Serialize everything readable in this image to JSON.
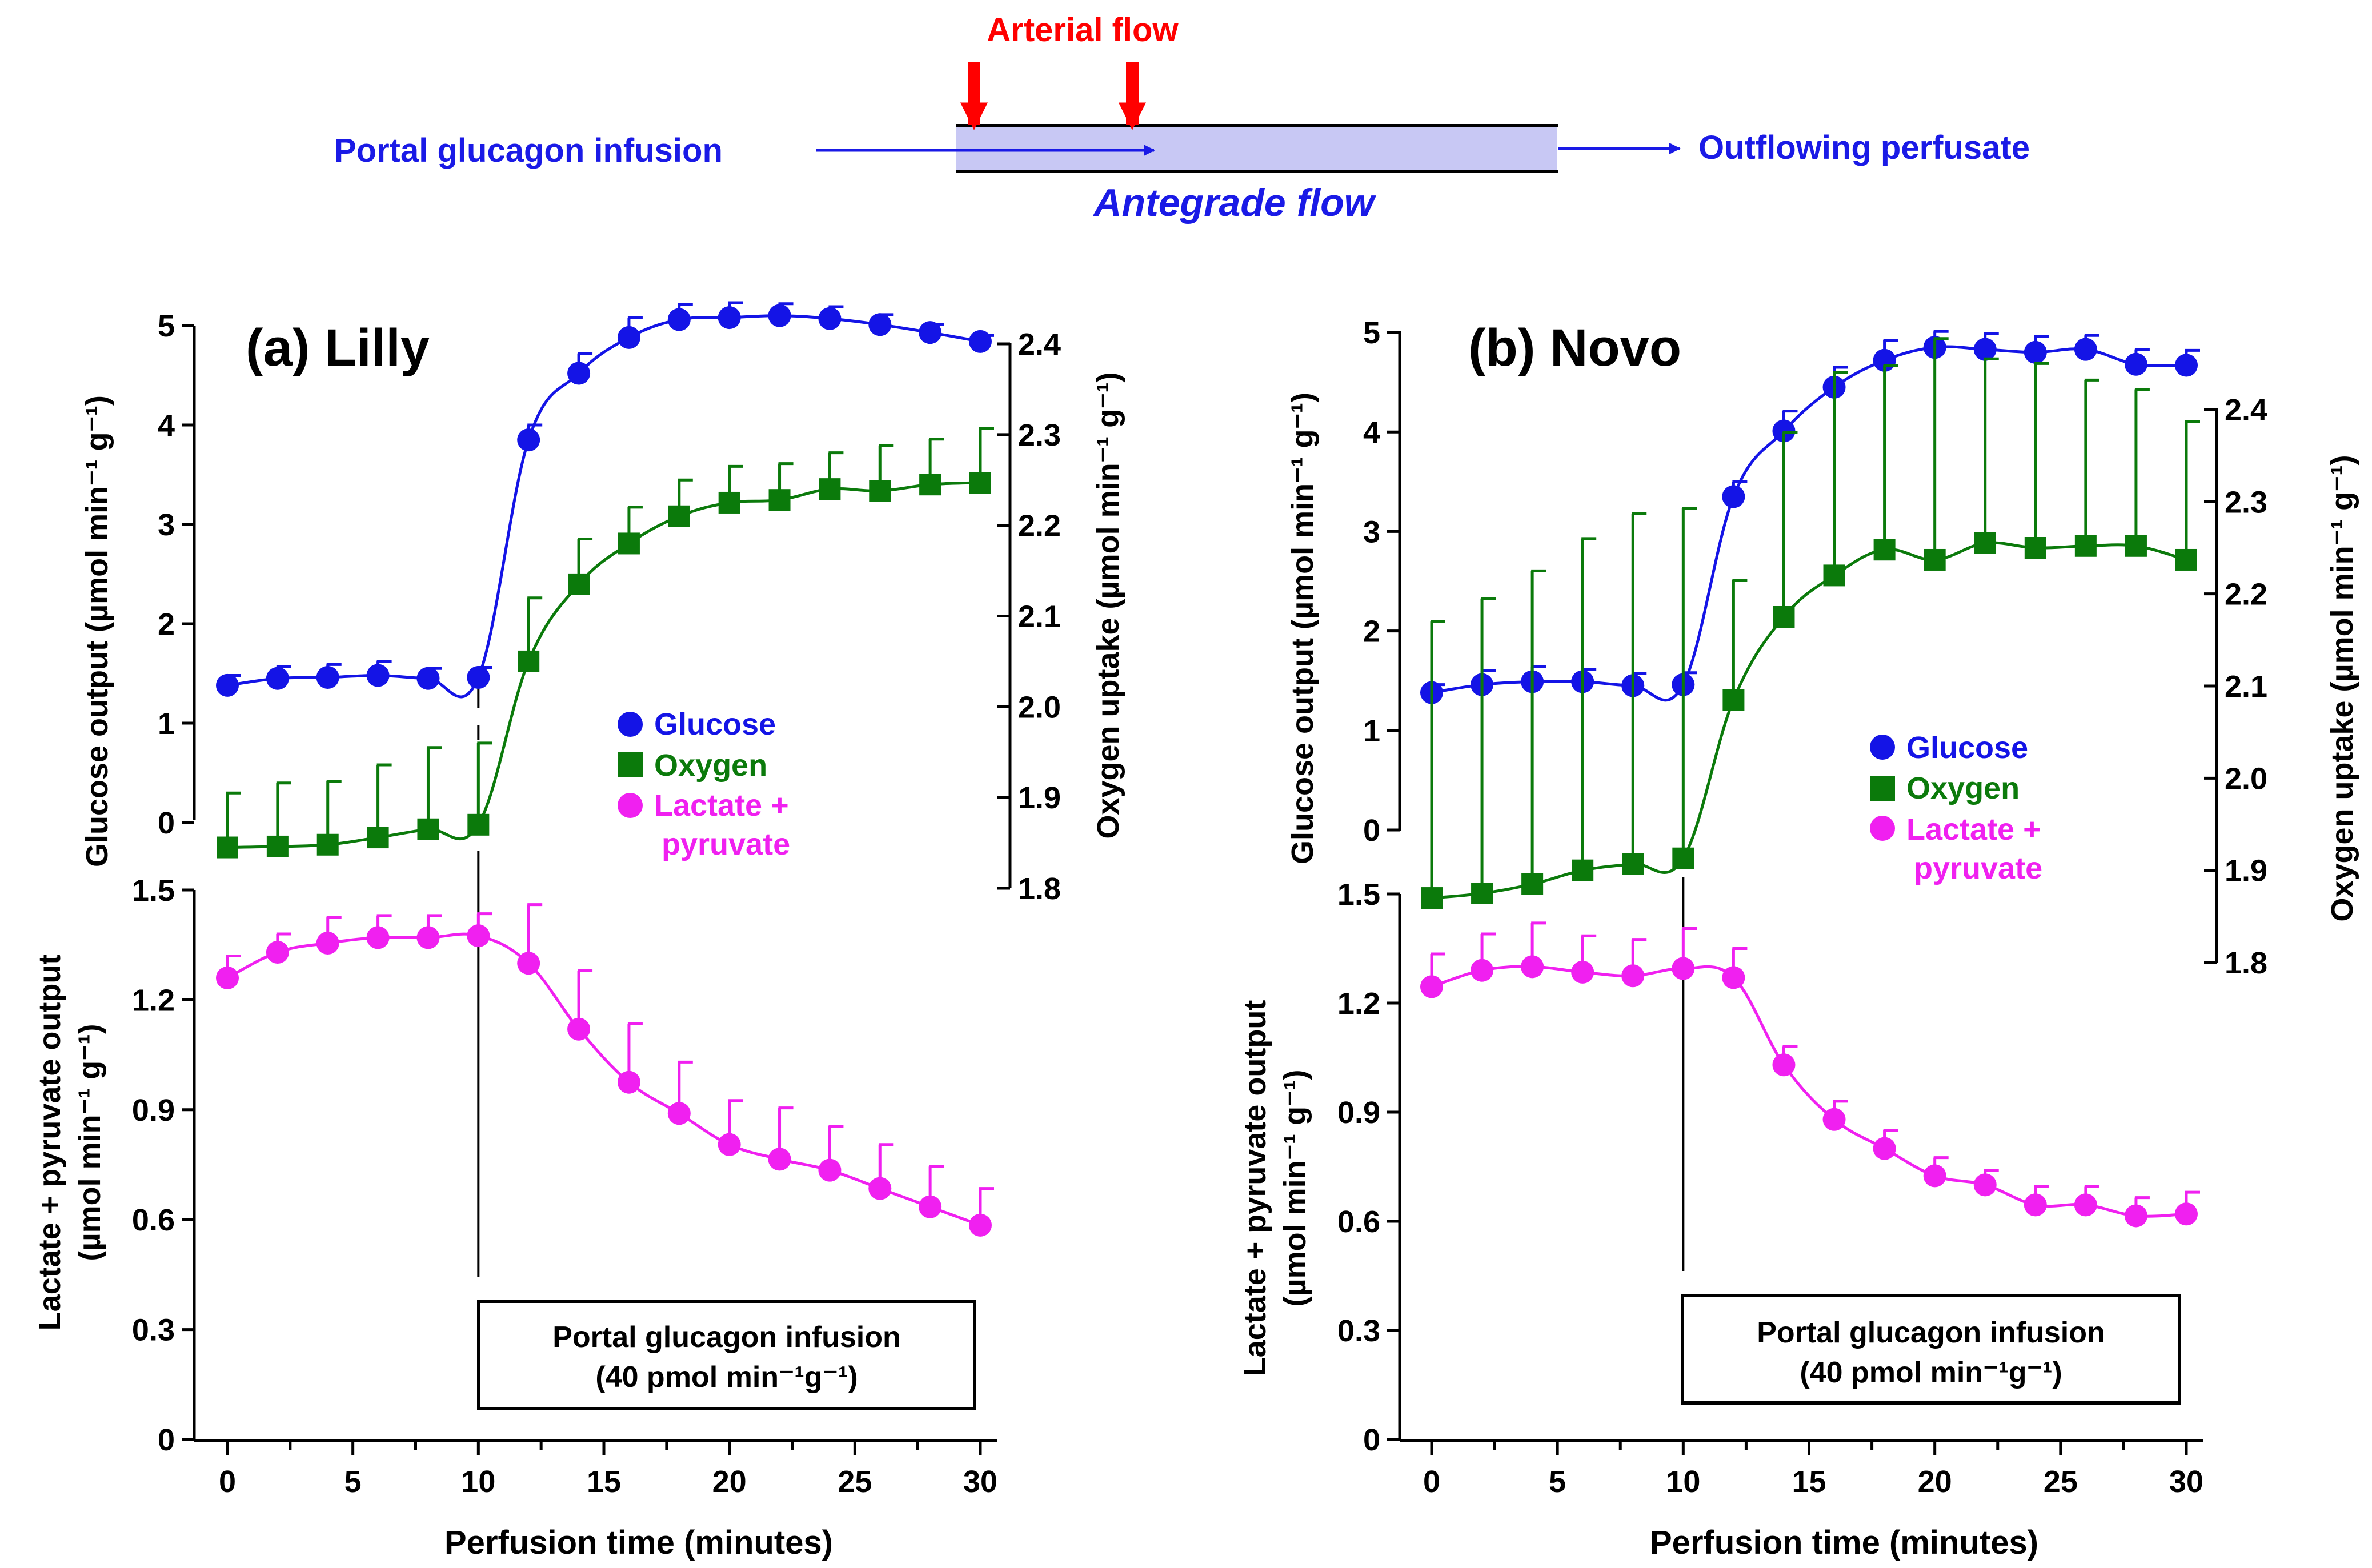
{
  "schematic": {
    "arterial_label": "Arterial flow",
    "portal_label": "Portal glucagon infusion",
    "outflow_label": "Outflowing perfusate",
    "antegrade_label": "Antegrade flow"
  },
  "legend": {
    "glucose": "Glucose",
    "oxygen": "Oxygen",
    "lactate_line1": "Lactate +",
    "lactate_line2": "pyruvate"
  },
  "axis_text": {
    "glucose_ylabel": "Glucose output (µmol min⁻¹ g⁻¹)",
    "oxygen_ylabel": "Oxygen uptake (µmol min⁻¹ g⁻¹)",
    "lactate_ylabel_line1": "Lactate + pyruvate output",
    "lactate_ylabel_line2": "(µmol min⁻¹ g⁻¹)",
    "xlabel": "Perfusion time (minutes)",
    "infusion_box_line1": "Portal glucagon infusion",
    "infusion_box_line2": "(40 pmol min⁻¹g⁻¹)"
  },
  "colors": {
    "glucose": "#1414e6",
    "oxygen": "#0b7a0b",
    "lactate": "#f020f0",
    "arrow_red": "#ff0000",
    "flow_blue": "#1a1ae6",
    "tube_fill": "#c8c8f4",
    "axis": "#000000"
  },
  "chart_data": [
    {
      "type": "line",
      "panel": "a",
      "title": "(a) Lilly",
      "x": [
        0,
        2,
        4,
        6,
        8,
        10,
        12,
        14,
        16,
        18,
        20,
        22,
        24,
        26,
        28,
        30
      ],
      "xlim": [
        0,
        30
      ],
      "xticks": [
        0,
        5,
        10,
        15,
        20,
        25,
        30
      ],
      "glucose_axis": {
        "ylim": [
          0,
          5
        ],
        "yticks": [
          0,
          1,
          2,
          3,
          4,
          5
        ]
      },
      "oxygen_axis": {
        "ylim": [
          1.8,
          2.4
        ],
        "yticks": [
          1.8,
          1.9,
          2.0,
          2.1,
          2.2,
          2.3,
          2.4
        ]
      },
      "lactate_axis": {
        "ylim": [
          0,
          1.5
        ],
        "yticks": [
          "0",
          "0.3",
          "0.6",
          "0.9",
          "1.2",
          "1.5"
        ]
      },
      "series": [
        {
          "name": "Glucose",
          "axis": "glucose",
          "values": [
            1.38,
            1.45,
            1.46,
            1.48,
            1.45,
            1.46,
            3.85,
            4.52,
            4.88,
            5.06,
            5.08,
            5.1,
            5.07,
            5.01,
            4.93,
            4.84
          ],
          "errors": [
            0.1,
            0.12,
            0.13,
            0.14,
            0.1,
            0.1,
            0.15,
            0.2,
            0.2,
            0.15,
            0.15,
            0.12,
            0.12,
            0.1,
            0.08,
            0.06
          ]
        },
        {
          "name": "Oxygen",
          "axis": "oxygen",
          "values": [
            1.845,
            1.846,
            1.848,
            1.856,
            1.865,
            1.87,
            2.05,
            2.135,
            2.18,
            2.21,
            2.225,
            2.228,
            2.24,
            2.238,
            2.245,
            2.247
          ],
          "errors": [
            0.06,
            0.07,
            0.07,
            0.08,
            0.09,
            0.09,
            0.07,
            0.05,
            0.04,
            0.04,
            0.04,
            0.04,
            0.04,
            0.05,
            0.05,
            0.06
          ]
        },
        {
          "name": "Lactate + pyruvate",
          "axis": "lactate",
          "values": [
            1.26,
            1.33,
            1.355,
            1.37,
            1.37,
            1.375,
            1.3,
            1.12,
            0.975,
            0.89,
            0.805,
            0.765,
            0.735,
            0.685,
            0.635,
            0.585
          ],
          "errors": [
            0.06,
            0.05,
            0.07,
            0.06,
            0.06,
            0.06,
            0.16,
            0.16,
            0.16,
            0.14,
            0.12,
            0.14,
            0.12,
            0.12,
            0.11,
            0.1
          ]
        }
      ]
    },
    {
      "type": "line",
      "panel": "b",
      "title": "(b) Novo",
      "x": [
        0,
        2,
        4,
        6,
        8,
        10,
        12,
        14,
        16,
        18,
        20,
        22,
        24,
        26,
        28,
        30
      ],
      "xlim": [
        0,
        30
      ],
      "xticks": [
        0,
        5,
        10,
        15,
        20,
        25,
        30
      ],
      "glucose_axis": {
        "ylim": [
          0,
          5
        ],
        "yticks": [
          0,
          1,
          2,
          3,
          4,
          5
        ]
      },
      "oxygen_axis": {
        "ylim": [
          1.8,
          2.4
        ],
        "yticks": [
          1.8,
          1.9,
          2.0,
          2.1,
          2.2,
          2.3,
          2.4
        ]
      },
      "lactate_axis": {
        "ylim": [
          0,
          1.5
        ],
        "yticks": [
          "0",
          "0.3",
          "0.6",
          "0.9",
          "1.2",
          "1.5"
        ]
      },
      "series": [
        {
          "name": "Glucose",
          "axis": "glucose",
          "values": [
            1.38,
            1.46,
            1.49,
            1.49,
            1.45,
            1.46,
            3.35,
            4.01,
            4.45,
            4.72,
            4.85,
            4.83,
            4.8,
            4.83,
            4.68,
            4.67
          ],
          "errors": [
            0.08,
            0.14,
            0.15,
            0.12,
            0.12,
            0.12,
            0.15,
            0.2,
            0.2,
            0.2,
            0.16,
            0.16,
            0.16,
            0.14,
            0.15,
            0.15
          ]
        },
        {
          "name": "Oxygen",
          "axis": "oxygen",
          "values": [
            1.87,
            1.875,
            1.885,
            1.9,
            1.907,
            1.913,
            2.085,
            2.175,
            2.22,
            2.248,
            2.237,
            2.255,
            2.25,
            2.252,
            2.252,
            2.237
          ],
          "errors": [
            0.3,
            0.32,
            0.34,
            0.36,
            0.38,
            0.38,
            0.13,
            0.2,
            0.22,
            0.2,
            0.24,
            0.2,
            0.2,
            0.18,
            0.17,
            0.15
          ]
        },
        {
          "name": "Lactate + pyruvate",
          "axis": "lactate",
          "values": [
            1.245,
            1.29,
            1.3,
            1.285,
            1.275,
            1.295,
            1.27,
            1.03,
            0.88,
            0.8,
            0.725,
            0.7,
            0.645,
            0.645,
            0.615,
            0.62
          ],
          "errors": [
            0.09,
            0.1,
            0.12,
            0.1,
            0.1,
            0.11,
            0.08,
            0.05,
            0.05,
            0.05,
            0.05,
            0.04,
            0.05,
            0.05,
            0.05,
            0.06
          ]
        }
      ]
    }
  ]
}
